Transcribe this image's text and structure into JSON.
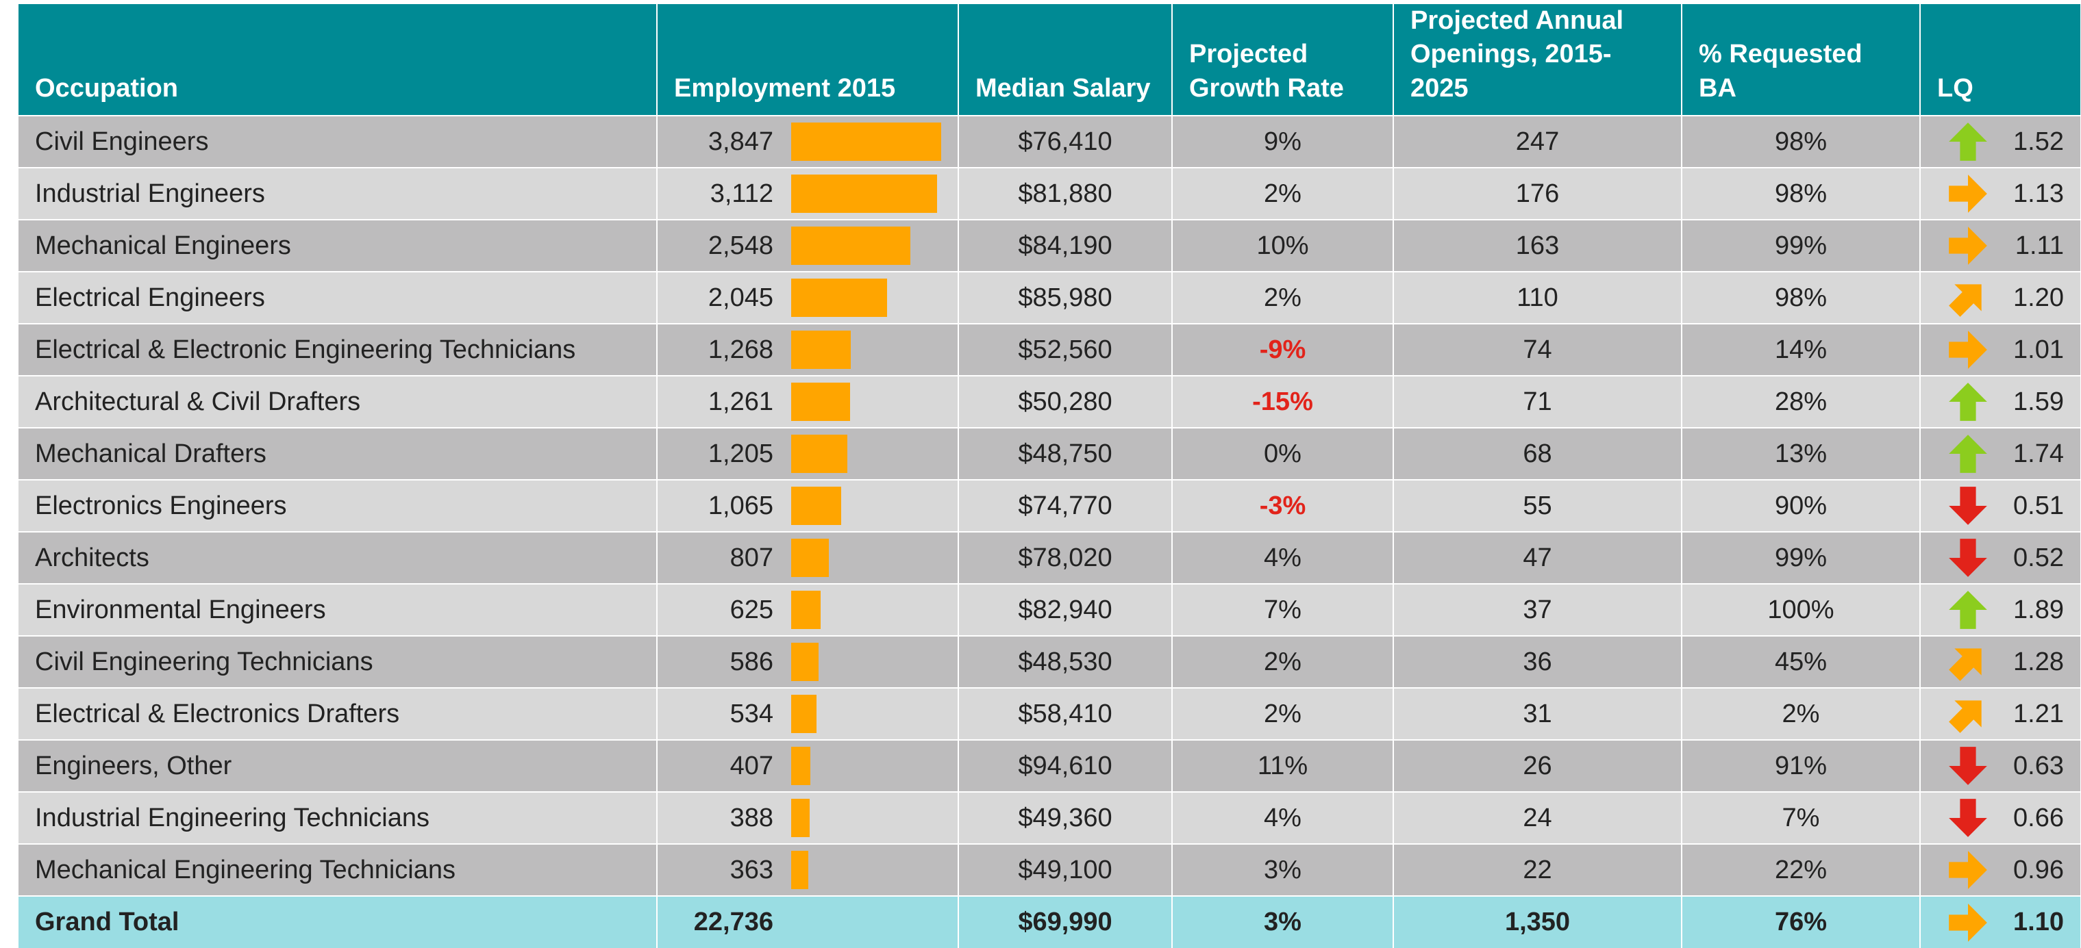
{
  "table": {
    "columns": [
      "Occupation",
      "Employment 2015",
      "Median Salary",
      "Projected Growth Rate",
      "Projected Annual Openings, 2015-2025",
      "% Requested BA",
      "LQ"
    ],
    "rows": [
      [
        "Civil Engineers",
        {
          "value": 3847,
          "label": "3,847"
        },
        "$76,410",
        "9%",
        "247",
        "98%",
        "1.52"
      ],
      [
        "Industrial Engineers",
        {
          "value": 3112,
          "label": "3,112"
        },
        "$81,880",
        "2%",
        "176",
        "98%",
        "1.13"
      ],
      [
        "Mechanical Engineers",
        {
          "value": 2548,
          "label": "2,548"
        },
        "$84,190",
        "10%",
        "163",
        "99%",
        "1.11"
      ],
      [
        "Electrical Engineers",
        {
          "value": 2045,
          "label": "2,045"
        },
        "$85,980",
        "2%",
        "110",
        "98%",
        "1.20"
      ],
      [
        "Electrical & Electronic Engineering Technicians",
        {
          "value": 1268,
          "label": "1,268"
        },
        "$52,560",
        "-9%",
        "74",
        "14%",
        "1.01"
      ],
      [
        "Architectural & Civil Drafters",
        {
          "value": 1261,
          "label": "1,261"
        },
        "$50,280",
        "-15%",
        "71",
        "28%",
        "1.59"
      ],
      [
        "Mechanical Drafters",
        {
          "value": 1205,
          "label": "1,205"
        },
        "$48,750",
        "0%",
        "68",
        "13%",
        "1.74"
      ],
      [
        "Electronics Engineers",
        {
          "value": 1065,
          "label": "1,065"
        },
        "$74,770",
        "-3%",
        "55",
        "90%",
        "0.51"
      ],
      [
        "Architects",
        {
          "value": 807,
          "label": "807"
        },
        "$78,020",
        "4%",
        "47",
        "99%",
        "0.52"
      ],
      [
        "Environmental Engineers",
        {
          "value": 625,
          "label": "625"
        },
        "$82,940",
        "7%",
        "37",
        "100%",
        "1.89"
      ],
      [
        "Civil Engineering Technicians",
        {
          "value": 586,
          "label": "586"
        },
        "$48,530",
        "2%",
        "36",
        "45%",
        "1.28"
      ],
      [
        "Electrical & Electronics Drafters",
        {
          "value": 534,
          "label": "534"
        },
        "$58,410",
        "2%",
        "31",
        "2%",
        "1.21"
      ],
      [
        "Engineers, Other",
        {
          "value": 407,
          "label": "407"
        },
        "$94,610",
        "11%",
        "26",
        "91%",
        "0.63"
      ],
      [
        "Industrial Engineering Technicians",
        {
          "value": 388,
          "label": "388"
        },
        "$49,360",
        "4%",
        "24",
        "7%",
        "0.66"
      ],
      [
        "Mechanical Engineering Technicians",
        {
          "value": 363,
          "label": "363"
        },
        "$49,100",
        "3%",
        "22",
        "22%",
        "0.96"
      ]
    ],
    "total": [
      "Grand Total",
      "22,736",
      "$69,990",
      "3%",
      "1,350",
      "76%",
      "1.10"
    ]
  }
}
